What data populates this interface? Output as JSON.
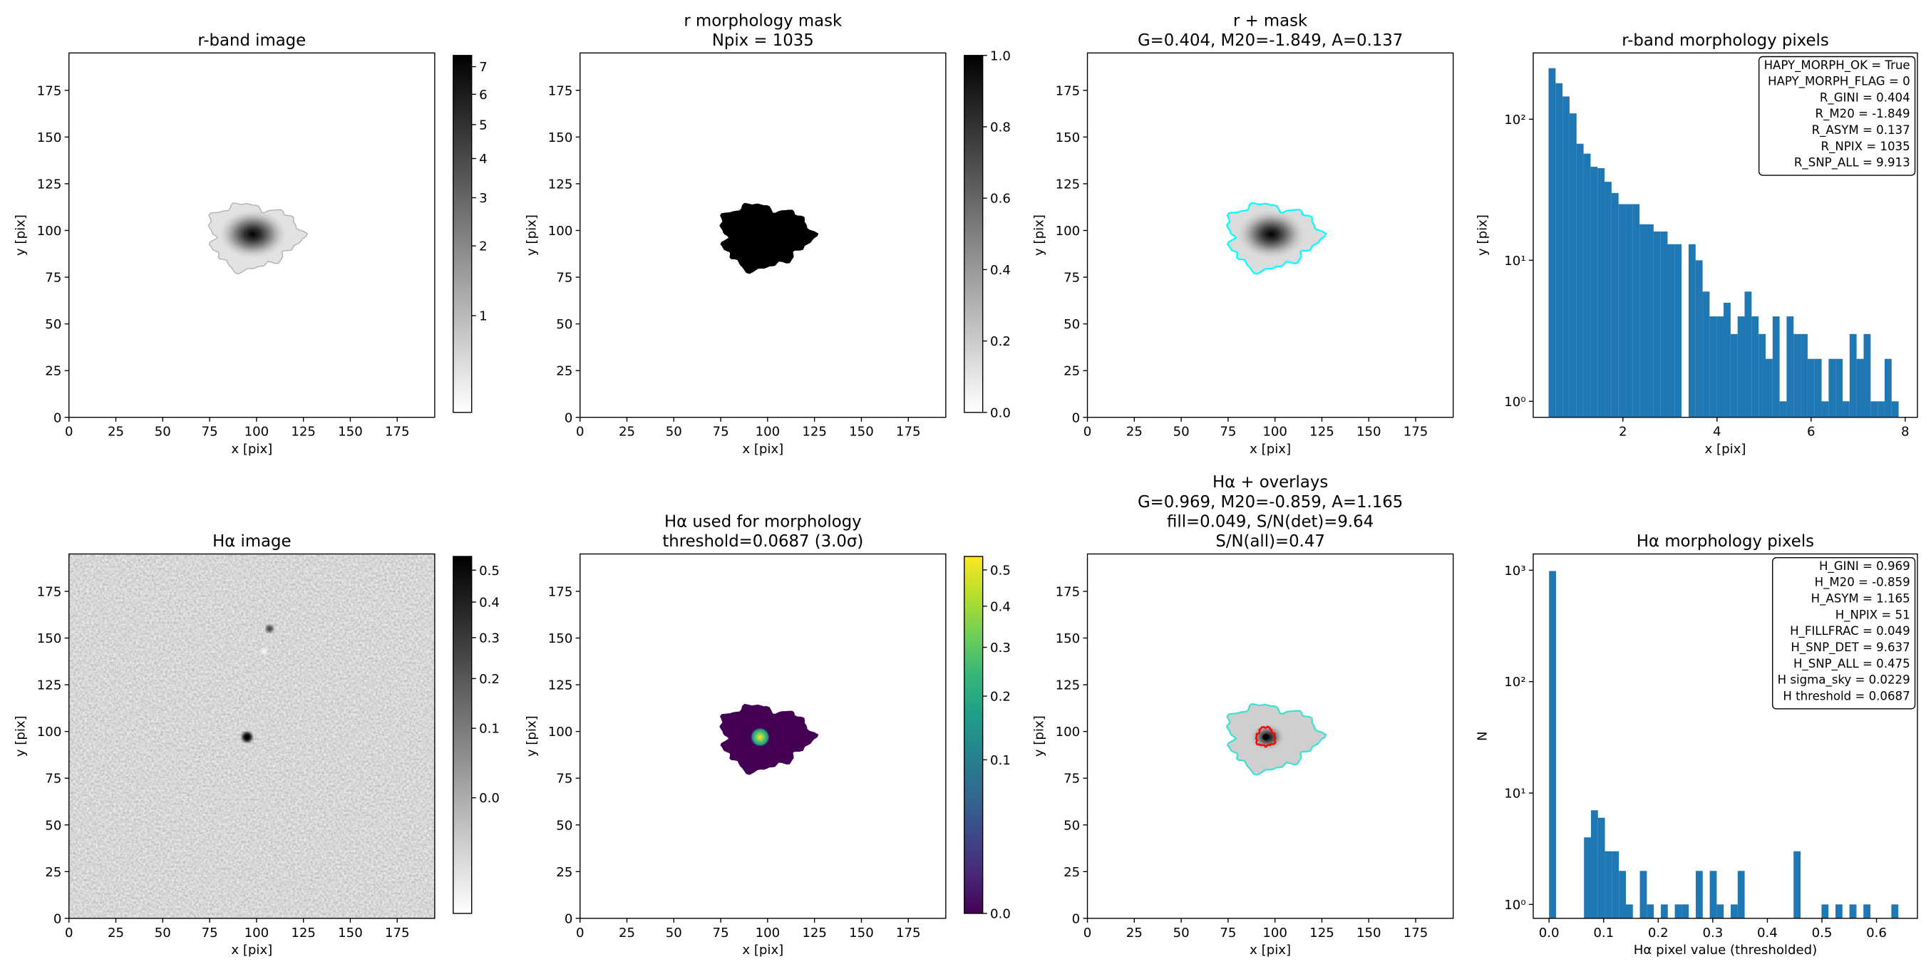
{
  "chart_data": [
    {
      "type": "image",
      "title": [
        "r-band image"
      ],
      "xlabel": "x [pix]",
      "ylabel": "y [pix]",
      "xlim": [
        0,
        195
      ],
      "ylim": [
        0,
        195
      ],
      "xticks": [
        0,
        25,
        50,
        75,
        100,
        125,
        150,
        175
      ],
      "yticks": [
        0,
        25,
        50,
        75,
        100,
        125,
        150,
        175
      ],
      "colorbar": {
        "colormap": "gray_r",
        "scale": "sqrt",
        "lim": [
          0.49,
          7.43
        ],
        "ticks": [
          1,
          2,
          3,
          4,
          5,
          6,
          7
        ]
      }
    },
    {
      "type": "image",
      "title": [
        "r morphology mask",
        "Npix = 1035"
      ],
      "xlabel": "x [pix]",
      "ylabel": "y [pix]",
      "xlim": [
        0,
        195
      ],
      "ylim": [
        0,
        195
      ],
      "xticks": [
        0,
        25,
        50,
        75,
        100,
        125,
        150,
        175
      ],
      "yticks": [
        0,
        25,
        50,
        75,
        100,
        125,
        150,
        175
      ],
      "colorbar": {
        "colormap": "gray_r",
        "scale": "linear",
        "lim": [
          0,
          1
        ],
        "ticks": [
          {
            "value": 0,
            "label": "0.0"
          },
          0.2,
          0.4,
          0.6,
          0.8,
          {
            "value": 1,
            "label": "1.0"
          }
        ]
      }
    },
    {
      "type": "image",
      "title": [
        "r + mask",
        "G=0.404, M20=-1.849, A=0.137"
      ],
      "xlabel": "x [pix]",
      "ylabel": "y [pix]",
      "xlim": [
        0,
        195
      ],
      "ylim": [
        0,
        195
      ],
      "xticks": [
        0,
        25,
        50,
        75,
        100,
        125,
        150,
        175
      ],
      "yticks": [
        0,
        25,
        50,
        75,
        100,
        125,
        150,
        175
      ]
    },
    {
      "type": "histogram",
      "title": [
        "r-band morphology pixels"
      ],
      "xlabel": "x [pix]",
      "ylabel": "y [pix]",
      "color": "#1f77b4",
      "log_y": true,
      "xlim": [
        0.094,
        8.26
      ],
      "ylim": [
        0.77,
        295
      ],
      "xticks": [
        2,
        4,
        6,
        8
      ],
      "yticks": [
        {
          "value": 1,
          "label": "10⁰"
        },
        {
          "value": 10,
          "label": "10¹"
        },
        {
          "value": 100,
          "label": "10²"
        }
      ],
      "bins": [
        0.42,
        0.569,
        0.718,
        0.866,
        1.015,
        1.164,
        1.313,
        1.462,
        1.61,
        1.759,
        1.908,
        2.057,
        2.206,
        2.354,
        2.503,
        2.652,
        2.801,
        2.95,
        3.098,
        3.247,
        3.396,
        3.545,
        3.694,
        3.842,
        3.991,
        4.14,
        4.289,
        4.438,
        4.586,
        4.735,
        4.884,
        5.033,
        5.182,
        5.33,
        5.479,
        5.628,
        5.777,
        5.926,
        6.074,
        6.223,
        6.372,
        6.521,
        6.67,
        6.818,
        6.967,
        7.116,
        7.265,
        7.414,
        7.562,
        7.711,
        7.86
      ],
      "values": [
        230,
        180,
        145,
        110,
        67,
        57,
        46,
        45,
        36,
        30,
        25,
        25,
        25,
        18,
        18,
        16,
        16,
        13,
        13,
        0,
        13,
        10,
        6,
        4,
        4,
        5,
        3,
        4,
        6,
        4,
        3,
        2,
        4,
        1,
        4,
        3,
        3,
        2,
        2,
        1,
        2,
        2,
        1,
        3,
        2,
        3,
        1,
        1,
        2,
        1
      ],
      "annotation": [
        "HAPY_MORPH_OK = True",
        "HAPY_MORPH_FLAG = 0",
        "R_GINI = 0.404",
        "R_M20 = -1.849",
        "R_ASYM = 0.137",
        "R_NPIX = 1035",
        "R_SNP_ALL = 9.913"
      ]
    },
    {
      "type": "image",
      "title": [
        "Hα image"
      ],
      "xlabel": "x [pix]",
      "ylabel": "y [pix]",
      "xlim": [
        0,
        195
      ],
      "ylim": [
        0,
        195
      ],
      "xticks": [
        0,
        25,
        50,
        75,
        100,
        125,
        150,
        175
      ],
      "yticks": [
        0,
        25,
        50,
        75,
        100,
        125,
        150,
        175
      ],
      "colorbar": {
        "colormap": "gray_r",
        "scale": "sqrt",
        "lim": [
          -0.064,
          0.546
        ],
        "ticks": [
          {
            "value": 0,
            "label": "0.0"
          },
          0.1,
          0.2,
          0.3,
          0.4,
          0.5
        ]
      }
    },
    {
      "type": "image",
      "title": [
        "Hα used for morphology",
        "threshold=0.0687 (3.0σ)"
      ],
      "xlabel": "x [pix]",
      "ylabel": "y [pix]",
      "xlim": [
        0,
        195
      ],
      "ylim": [
        0,
        195
      ],
      "xticks": [
        0,
        25,
        50,
        75,
        100,
        125,
        150,
        175
      ],
      "yticks": [
        0,
        25,
        50,
        75,
        100,
        125,
        150,
        175
      ],
      "colorbar": {
        "colormap": "viridis",
        "scale": "sqrt",
        "lim": [
          0,
          0.54
        ],
        "ticks": [
          {
            "value": 0,
            "label": "0.0"
          },
          0.1,
          0.2,
          0.3,
          0.4,
          0.5
        ]
      }
    },
    {
      "type": "image",
      "title": [
        "Hα + overlays",
        "G=0.969, M20=-0.859, A=1.165",
        "fill=0.049, S/N(det)=9.64",
        "S/N(all)=0.47"
      ],
      "xlabel": "x [pix]",
      "ylabel": "y [pix]",
      "xlim": [
        0,
        195
      ],
      "ylim": [
        0,
        195
      ],
      "xticks": [
        0,
        25,
        50,
        75,
        100,
        125,
        150,
        175
      ],
      "yticks": [
        0,
        25,
        50,
        75,
        100,
        125,
        150,
        175
      ]
    },
    {
      "type": "histogram",
      "title": [
        "Hα morphology pixels"
      ],
      "xlabel": "Hα pixel value (thresholded)",
      "ylabel": "N",
      "color": "#1f77b4",
      "log_y": true,
      "xlim": [
        -0.029,
        0.675
      ],
      "ylim": [
        0.75,
        1400
      ],
      "xticks": [
        {
          "value": 0,
          "label": "0.0"
        },
        0.1,
        0.2,
        0.3,
        0.4,
        0.5,
        0.6
      ],
      "yticks": [
        {
          "value": 1,
          "label": "10⁰"
        },
        {
          "value": 10,
          "label": "10¹"
        },
        {
          "value": 100,
          "label": "10²"
        },
        {
          "value": 1000,
          "label": "10³"
        }
      ],
      "bins": [
        0,
        0.0128,
        0.0256,
        0.0384,
        0.0512,
        0.064,
        0.0768,
        0.0896,
        0.1024,
        0.1152,
        0.128,
        0.1408,
        0.1536,
        0.1664,
        0.1792,
        0.192,
        0.2048,
        0.2176,
        0.2304,
        0.2432,
        0.256,
        0.2688,
        0.2816,
        0.2944,
        0.3072,
        0.32,
        0.3328,
        0.3456,
        0.3584,
        0.3712,
        0.384,
        0.3968,
        0.4096,
        0.4224,
        0.4352,
        0.448,
        0.4608,
        0.4736,
        0.4864,
        0.4992,
        0.512,
        0.5248,
        0.5376,
        0.5504,
        0.5632,
        0.576,
        0.5888,
        0.6016,
        0.6144,
        0.6272,
        0.64
      ],
      "values": [
        984,
        0,
        0,
        0,
        0,
        4,
        7,
        6,
        3,
        3,
        2,
        1,
        0,
        2,
        1,
        0,
        1,
        0,
        1,
        1,
        0,
        2,
        0,
        2,
        1,
        0,
        1,
        2,
        0,
        0,
        0,
        0,
        0,
        0,
        0,
        3,
        0,
        0,
        0,
        1,
        0,
        1,
        0,
        1,
        0,
        1,
        0,
        0,
        0,
        1
      ],
      "annotation": [
        "H_GINI = 0.969",
        "H_M20 = -0.859",
        "H_ASYM = 1.165",
        "H_NPIX = 51",
        "H_FILLFRAC = 0.049",
        "H_SNP_DET = 9.637",
        "H_SNP_ALL = 0.475",
        "H sigma_sky = 0.0229",
        "H threshold = 0.0687"
      ]
    }
  ]
}
